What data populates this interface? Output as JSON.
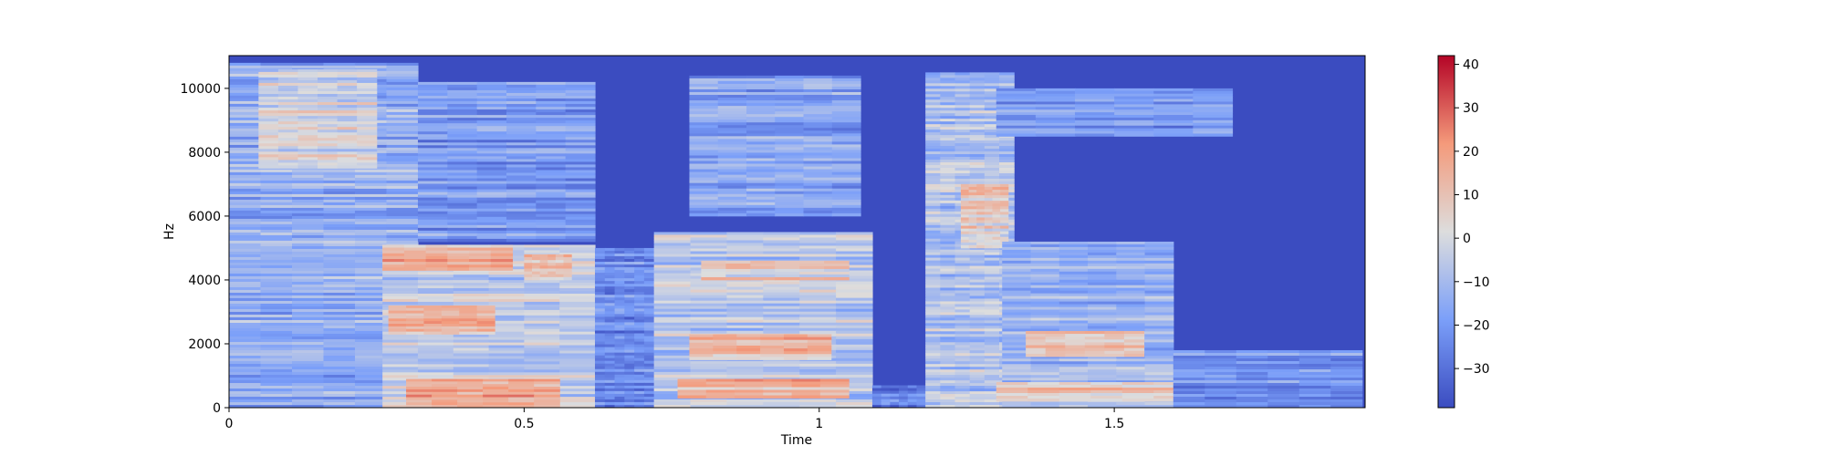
{
  "chart_data": {
    "type": "heatmap",
    "title": "",
    "xlabel": "Time",
    "ylabel": "Hz",
    "xlim": [
      0,
      1.925
    ],
    "ylim": [
      0,
      11025
    ],
    "xticks": [
      {
        "value": 0,
        "label": "0"
      },
      {
        "value": 0.5,
        "label": "0.5"
      },
      {
        "value": 1,
        "label": "1"
      },
      {
        "value": 1.5,
        "label": "1.5"
      }
    ],
    "yticks": [
      {
        "value": 0,
        "label": "0"
      },
      {
        "value": 2000,
        "label": "2000"
      },
      {
        "value": 4000,
        "label": "4000"
      },
      {
        "value": 6000,
        "label": "6000"
      },
      {
        "value": 8000,
        "label": "8000"
      },
      {
        "value": 10000,
        "label": "10000"
      }
    ],
    "grid": false,
    "colormap": "coolwarm",
    "colorbar": {
      "range": [
        -39,
        42
      ],
      "ticks": [
        {
          "value": 40,
          "label": "40"
        },
        {
          "value": 30,
          "label": "30"
        },
        {
          "value": 20,
          "label": "20"
        },
        {
          "value": 10,
          "label": "10"
        },
        {
          "value": 0,
          "label": "0"
        },
        {
          "value": -10,
          "label": "−10"
        },
        {
          "value": -20,
          "label": "−20"
        },
        {
          "value": -30,
          "label": "−30"
        }
      ]
    },
    "regions_db": [
      {
        "t": [
          0.0,
          0.32
        ],
        "f": [
          0,
          10800
        ],
        "level": -14
      },
      {
        "t": [
          0.05,
          0.25
        ],
        "f": [
          7500,
          10600
        ],
        "level": 0
      },
      {
        "t": [
          0.26,
          0.62
        ],
        "f": [
          0,
          5100
        ],
        "level": -4
      },
      {
        "t": [
          0.26,
          0.48
        ],
        "f": [
          4300,
          5100
        ],
        "level": 14
      },
      {
        "t": [
          0.27,
          0.45
        ],
        "f": [
          2300,
          3200
        ],
        "level": 12
      },
      {
        "t": [
          0.3,
          0.56
        ],
        "f": [
          0,
          900
        ],
        "level": 16
      },
      {
        "t": [
          0.5,
          0.58
        ],
        "f": [
          4000,
          4800
        ],
        "level": 10
      },
      {
        "t": [
          0.32,
          0.62
        ],
        "f": [
          5200,
          10200
        ],
        "level": -20
      },
      {
        "t": [
          0.62,
          0.72
        ],
        "f": [
          0,
          5000
        ],
        "level": -24
      },
      {
        "t": [
          0.72,
          1.09
        ],
        "f": [
          0,
          5500
        ],
        "level": -6
      },
      {
        "t": [
          0.78,
          1.02
        ],
        "f": [
          1500,
          2300
        ],
        "level": 12
      },
      {
        "t": [
          0.76,
          1.05
        ],
        "f": [
          300,
          900
        ],
        "level": 14
      },
      {
        "t": [
          0.8,
          1.05
        ],
        "f": [
          4000,
          4600
        ],
        "level": 6
      },
      {
        "t": [
          0.78,
          1.07
        ],
        "f": [
          6000,
          10400
        ],
        "level": -18
      },
      {
        "t": [
          1.09,
          1.18
        ],
        "f": [
          0,
          700
        ],
        "level": -28
      },
      {
        "t": [
          1.18,
          1.33
        ],
        "f": [
          0,
          10500
        ],
        "level": -8
      },
      {
        "t": [
          1.24,
          1.32
        ],
        "f": [
          5000,
          7000
        ],
        "level": 6
      },
      {
        "t": [
          1.31,
          1.6
        ],
        "f": [
          0,
          5200
        ],
        "level": -12
      },
      {
        "t": [
          1.35,
          1.55
        ],
        "f": [
          1600,
          2400
        ],
        "level": 8
      },
      {
        "t": [
          1.3,
          1.62
        ],
        "f": [
          200,
          800
        ],
        "level": 8
      },
      {
        "t": [
          1.3,
          1.7
        ],
        "f": [
          8500,
          10000
        ],
        "level": -22
      },
      {
        "t": [
          1.6,
          1.92
        ],
        "f": [
          0,
          1800
        ],
        "level": -22
      }
    ]
  }
}
